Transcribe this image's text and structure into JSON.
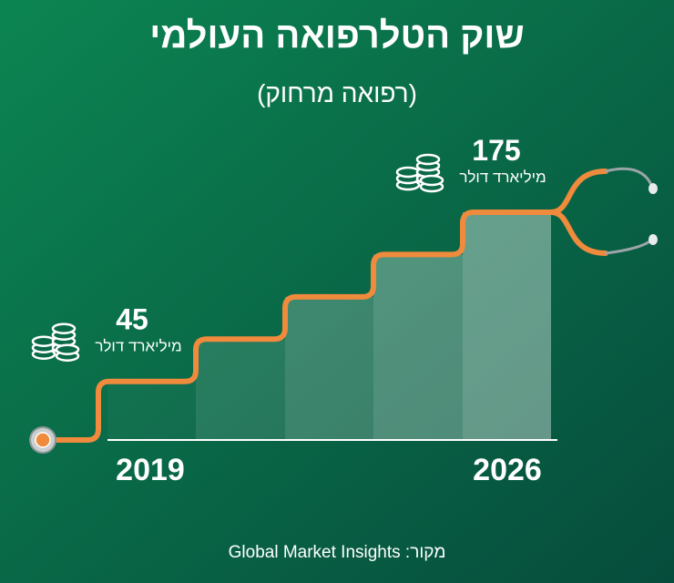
{
  "chart_data": {
    "type": "staircase",
    "title": "שוק הטלרפואה העולמי",
    "subtitle": "(רפואה מרחוק)",
    "categories": [
      "2019",
      "2026"
    ],
    "values": [
      45,
      175
    ],
    "unit": "מיליארד דולר",
    "color": "#f08a3c",
    "source": "מקור: Global Market Insights"
  }
}
